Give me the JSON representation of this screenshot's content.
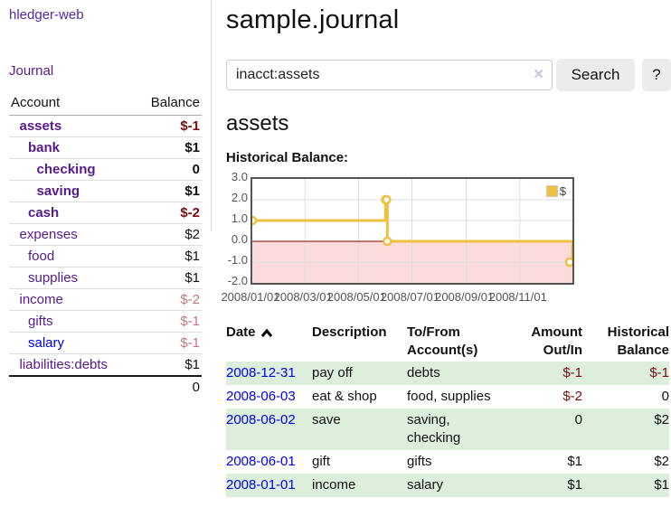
{
  "app": {
    "title": "hledger-web"
  },
  "sidebar": {
    "journal_link": "Journal",
    "table": {
      "headers": {
        "account": "Account",
        "balance": "Balance"
      },
      "rows": [
        {
          "name": "assets",
          "indent": 1,
          "bold": true,
          "link": "purple",
          "balance": "$-1",
          "balance_color": "neg"
        },
        {
          "name": "bank",
          "indent": 2,
          "bold": true,
          "link": "purple",
          "balance": "$1",
          "balance_color": "pos"
        },
        {
          "name": "checking",
          "indent": 3,
          "bold": true,
          "link": "purple",
          "balance": "0",
          "balance_color": "pos"
        },
        {
          "name": "saving",
          "indent": 3,
          "bold": true,
          "link": "purple",
          "balance": "$1",
          "balance_color": "pos"
        },
        {
          "name": "cash",
          "indent": 2,
          "bold": true,
          "link": "purple",
          "balance": "$-2",
          "balance_color": "neg"
        },
        {
          "name": "expenses",
          "indent": 1,
          "bold": false,
          "link": "purple",
          "balance": "$2",
          "balance_color": "pos"
        },
        {
          "name": "food",
          "indent": 2,
          "bold": false,
          "link": "purple",
          "balance": "$1",
          "balance_color": "pos"
        },
        {
          "name": "supplies",
          "indent": 2,
          "bold": false,
          "link": "purple",
          "balance": "$1",
          "balance_color": "pos"
        },
        {
          "name": "income",
          "indent": 1,
          "bold": false,
          "link": "purple",
          "balance": "$-2",
          "balance_color": "rose"
        },
        {
          "name": "gifts",
          "indent": 2,
          "bold": false,
          "link": "purple",
          "balance": "$-1",
          "balance_color": "rose"
        },
        {
          "name": "salary",
          "indent": 2,
          "bold": false,
          "link": "blue",
          "balance": "$-1",
          "balance_color": "rose"
        },
        {
          "name": "liabilities:debts",
          "indent": 1,
          "bold": false,
          "link": "purple",
          "balance": "$1",
          "balance_color": "pos"
        }
      ],
      "total": "0"
    }
  },
  "main": {
    "title": "sample.journal",
    "search": {
      "value": "inacct:assets",
      "clear_icon": "✕",
      "button_label": "Search",
      "help_label": "?"
    },
    "section_title": "assets",
    "chart_label": "Historical Balance:"
  },
  "chart_data": {
    "type": "line",
    "title": "Historical Balance",
    "step": true,
    "grid": true,
    "legend": "$",
    "legend_position": "top-right",
    "series": [
      {
        "name": "$",
        "points": [
          [
            "2008-01-01",
            1
          ],
          [
            "2008-06-01",
            2
          ],
          [
            "2008-06-02",
            2
          ],
          [
            "2008-06-03",
            0
          ],
          [
            "2008-12-31",
            -1
          ]
        ]
      }
    ],
    "x_range": [
      "2008-01-01",
      "2008-12-31"
    ],
    "ylim": [
      -2,
      3
    ],
    "ytick_values": [
      3,
      2,
      1,
      0,
      -1,
      -2
    ],
    "yticks": [
      "3.0",
      "2.0",
      "1.0",
      "0.0",
      "-1.0",
      "-2.0"
    ],
    "xtick_dates": [
      "2008-01-01",
      "2008-03-01",
      "2008-05-01",
      "2008-07-01",
      "2008-09-01",
      "2008-11-01"
    ],
    "xticks": [
      "2008/01/01",
      "2008/03/01",
      "2008/05/01",
      "2008/07/01",
      "2008/09/01",
      "2008/11/01"
    ],
    "ygrid": [
      2,
      1,
      0,
      -1
    ],
    "line_color": "#edc240",
    "negative_fill": "#fbdbdb",
    "zero_line_color": "#8b0000",
    "grid_color": "#dddddd"
  },
  "transactions": {
    "headers": {
      "date": "Date",
      "description": "Description",
      "tofrom1": "To/From",
      "tofrom2": "Account(s)",
      "amount1": "Amount",
      "amount2": "Out/In",
      "balance1": "Historical",
      "balance2": "Balance"
    },
    "rows": [
      {
        "date": "2008-12-31",
        "description": "pay off",
        "tofrom_lines": [
          "debts"
        ],
        "amount": "$-1",
        "amount_neg": true,
        "balance": "$-1",
        "balance_neg": true,
        "shaded": true
      },
      {
        "date": "2008-06-03",
        "description": "eat & shop",
        "tofrom_lines": [
          "food, supplies"
        ],
        "amount": "$-2",
        "amount_neg": true,
        "balance": "0",
        "balance_neg": false,
        "shaded": false
      },
      {
        "date": "2008-06-02",
        "description": "save",
        "tofrom_lines": [
          "saving,",
          "checking"
        ],
        "amount": "0",
        "amount_neg": false,
        "balance": "$2",
        "balance_neg": false,
        "shaded": true
      },
      {
        "date": "2008-06-01",
        "description": "gift",
        "tofrom_lines": [
          "gifts"
        ],
        "amount": "$1",
        "amount_neg": false,
        "balance": "$2",
        "balance_neg": false,
        "shaded": false
      },
      {
        "date": "2008-01-01",
        "description": "income",
        "tofrom_lines": [
          "salary"
        ],
        "amount": "$1",
        "amount_neg": false,
        "balance": "$1",
        "balance_neg": false,
        "shaded": true
      }
    ]
  }
}
